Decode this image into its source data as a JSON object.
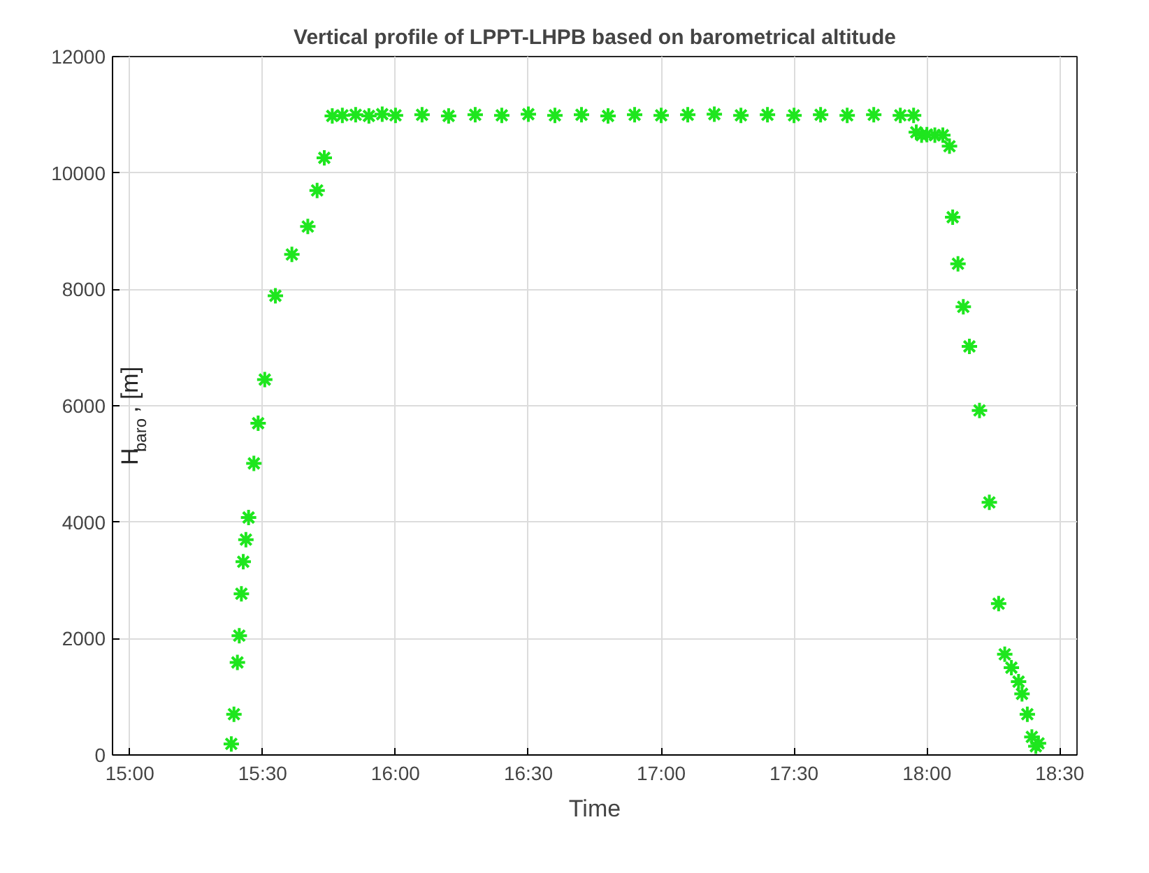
{
  "chart_data": {
    "type": "scatter",
    "title": "Vertical profile of LPPT-LHPB based on barometrical altitude",
    "xlabel": "Time",
    "ylabel": "H$_{baro}$, [m]",
    "x": [
      15.382,
      15.392,
      15.405,
      15.412,
      15.42,
      15.427,
      15.437,
      15.447,
      15.467,
      15.483,
      15.508,
      15.548,
      15.61,
      15.67,
      15.705,
      15.732,
      15.762,
      15.8,
      15.85,
      15.9,
      15.95,
      16.0,
      16.1,
      16.2,
      16.3,
      16.4,
      16.5,
      16.6,
      16.7,
      16.8,
      16.9,
      17.0,
      17.1,
      17.2,
      17.3,
      17.4,
      17.5,
      17.6,
      17.7,
      17.8,
      17.9,
      17.95,
      17.96,
      17.98,
      18.0,
      18.03,
      18.06,
      18.085,
      18.097,
      18.117,
      18.137,
      18.16,
      18.198,
      18.235,
      18.27,
      18.293,
      18.318,
      18.345,
      18.358,
      18.378,
      18.395,
      18.41,
      18.42
    ],
    "values": [
      190,
      700,
      1590,
      2050,
      2770,
      3320,
      3700,
      4080,
      5010,
      5700,
      6450,
      7890,
      8600,
      9080,
      9700,
      10260,
      10980,
      10990,
      11000,
      10980,
      11010,
      10990,
      11000,
      10980,
      11000,
      10990,
      11010,
      10990,
      11000,
      10980,
      11000,
      10990,
      11000,
      11010,
      10990,
      11000,
      10990,
      11000,
      10990,
      11000,
      10990,
      10990,
      10700,
      10650,
      10660,
      10650,
      10650,
      10460,
      9240,
      8440,
      7700,
      7020,
      5920,
      4340,
      2600,
      1730,
      1500,
      1260,
      1050,
      700,
      310,
      150,
      200
    ],
    "color": "#1ee61e",
    "marker": "cross",
    "xlim": [
      14.935,
      18.565
    ],
    "ylim": [
      0,
      12000
    ],
    "xticks": [
      {
        "value": 15,
        "label": "15:00"
      },
      {
        "value": 15.5,
        "label": "15:30"
      },
      {
        "value": 16,
        "label": "16:00"
      },
      {
        "value": 16.5,
        "label": "16:30"
      },
      {
        "value": 17,
        "label": "17:00"
      },
      {
        "value": 17.5,
        "label": "17:30"
      },
      {
        "value": 18,
        "label": "18:00"
      },
      {
        "value": 18.5,
        "label": "18:30"
      }
    ],
    "yticks": [
      0,
      2000,
      4000,
      6000,
      8000,
      10000,
      12000
    ],
    "grid": true
  }
}
